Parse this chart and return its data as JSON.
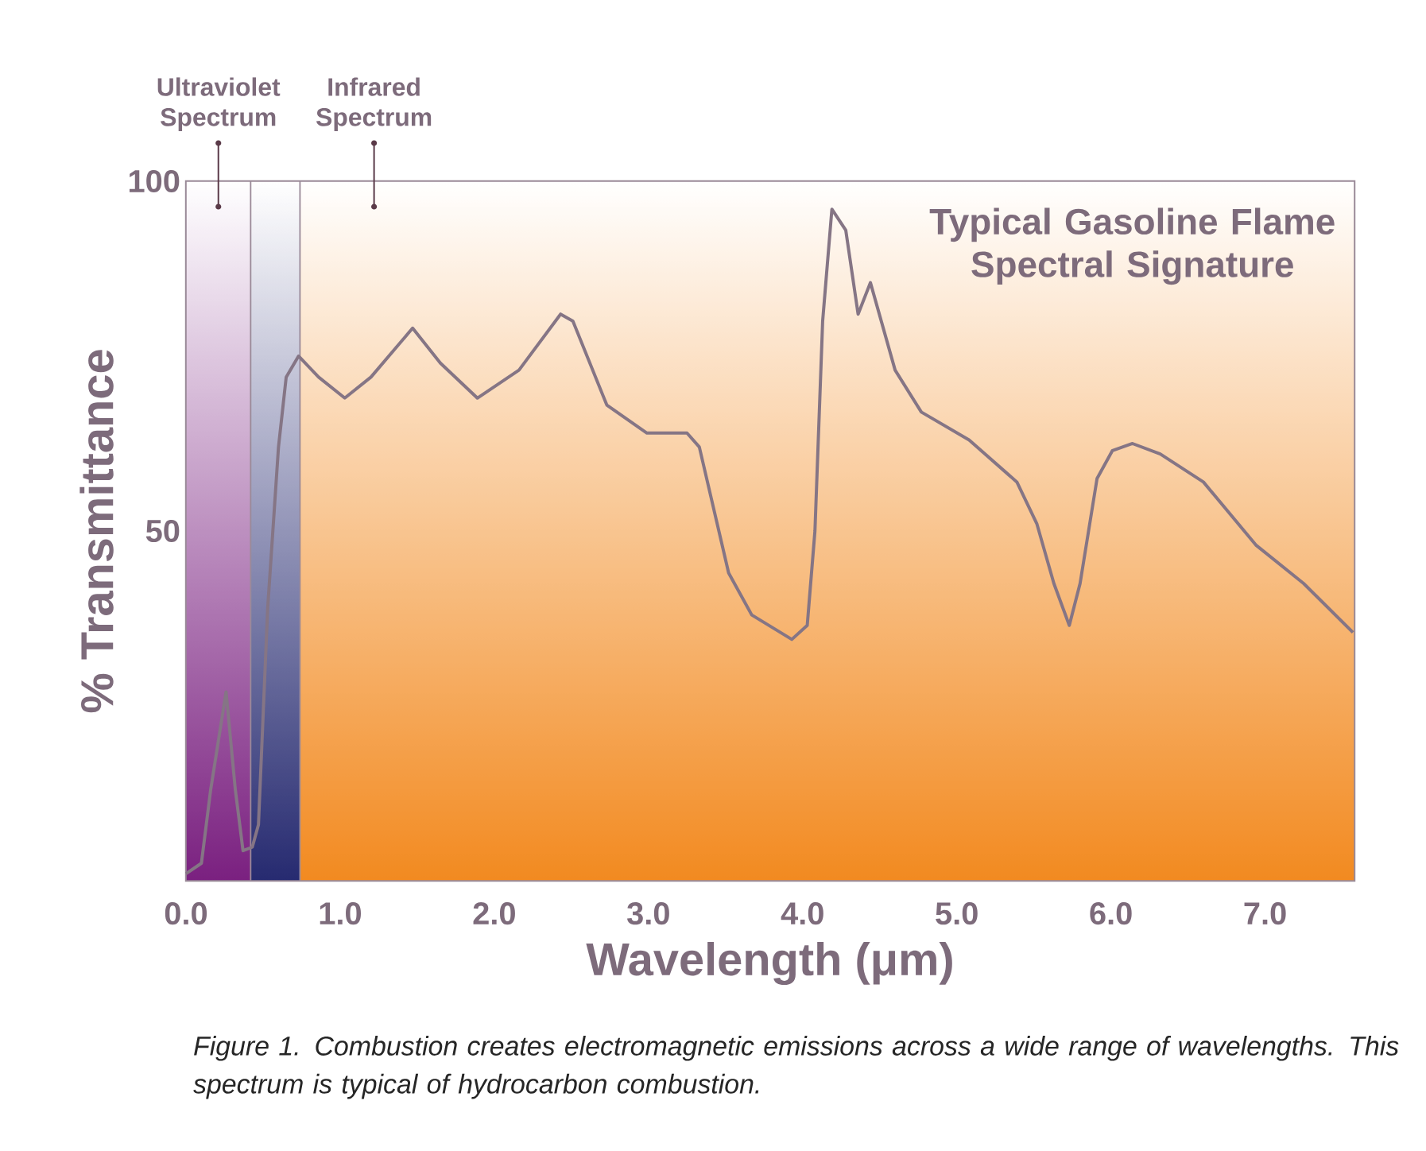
{
  "chart_data": {
    "type": "line",
    "title": "Typical Gasoline Flame Spectral Signature",
    "xlabel": "Wavelength (μm)",
    "ylabel": "% Transmittance",
    "x": [
      0,
      0.1,
      0.16,
      0.26,
      0.32,
      0.37,
      0.43,
      0.47,
      0.53,
      0.6,
      0.65,
      0.73,
      0.86,
      1.03,
      1.2,
      1.47,
      1.65,
      1.89,
      2.16,
      2.43,
      2.51,
      2.73,
      2.99,
      3.25,
      3.33,
      3.52,
      3.67,
      3.93,
      4.03,
      4.08,
      4.13,
      4.19,
      4.28,
      4.36,
      4.44,
      4.6,
      4.77,
      5.08,
      5.39,
      5.52,
      5.63,
      5.73,
      5.8,
      5.91,
      6.01,
      6.14,
      6.32,
      6.6,
      6.94,
      7.25,
      7.57
    ],
    "values": [
      1,
      2.5,
      13,
      27,
      13,
      4.3,
      4.8,
      8,
      39,
      62,
      72,
      75,
      72,
      69,
      72,
      79,
      74,
      69,
      73,
      81,
      80,
      68,
      64,
      64,
      62,
      44,
      38,
      34.5,
      36.5,
      50,
      80,
      96,
      93,
      81,
      85.5,
      73,
      67,
      63,
      57,
      51,
      42.5,
      36.5,
      42.5,
      57.5,
      61.5,
      62.5,
      61,
      57,
      48,
      42.5,
      35.5
    ],
    "color": "#857585",
    "xlim": [
      0,
      7.58
    ],
    "ylim": [
      0,
      100
    ],
    "xticks": [
      {
        "value": 0,
        "label": "0.0"
      },
      {
        "value": 1,
        "label": "1.0"
      },
      {
        "value": 2,
        "label": "2.0"
      },
      {
        "value": 3,
        "label": "3.0"
      },
      {
        "value": 4,
        "label": "4.0"
      },
      {
        "value": 5,
        "label": "5.0"
      },
      {
        "value": 6,
        "label": "6.0"
      },
      {
        "value": 7,
        "label": "7.0"
      }
    ],
    "yticks": [
      50,
      100
    ],
    "bands": [
      {
        "axis": "x",
        "from": 0,
        "to": 0.42,
        "label": "Ultraviolet Spectrum",
        "color": "#7a2080"
      },
      {
        "axis": "x",
        "from": 0.42,
        "to": 0.74,
        "color": "#262a70"
      },
      {
        "axis": "x",
        "from": 0.74,
        "to": 7.58,
        "label": "Infrared Spectrum",
        "color": "#f28a20"
      }
    ],
    "annotations": [
      "Figure 1. Combustion creates electromagnetic emissions across a wide range of wavelengths. This spectrum is typical of hydrocarbon combustion."
    ]
  }
}
